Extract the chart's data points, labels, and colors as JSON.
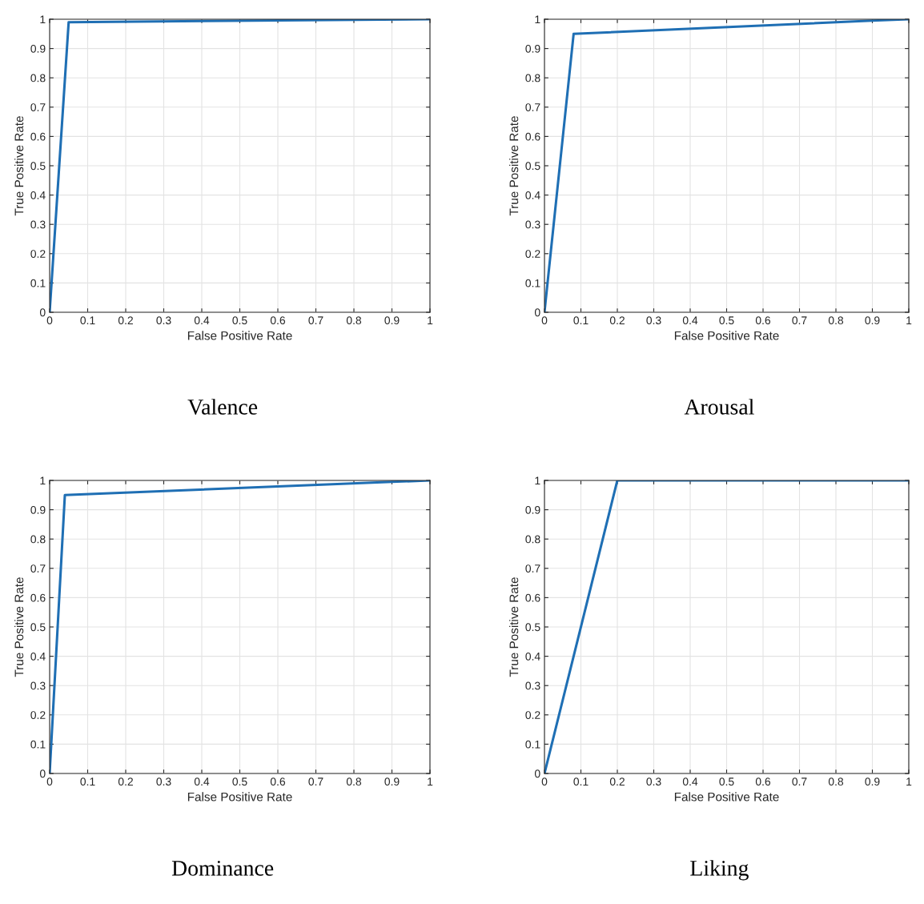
{
  "chart_data": [
    {
      "type": "line",
      "title": "Valence",
      "xlabel": "False Positive Rate",
      "ylabel": "True Positive Rate",
      "xlim": [
        0,
        1
      ],
      "ylim": [
        0,
        1
      ],
      "xticks": [
        0,
        0.1,
        0.2,
        0.3,
        0.4,
        0.5,
        0.6,
        0.7,
        0.8,
        0.9,
        1
      ],
      "yticks": [
        0,
        0.1,
        0.2,
        0.3,
        0.4,
        0.5,
        0.6,
        0.7,
        0.8,
        0.9,
        1
      ],
      "grid": true,
      "marker": "none",
      "line_style": "solid",
      "series": [
        {
          "color": "#1f6fb4",
          "x": [
            0,
            0.05,
            1
          ],
          "values": [
            0,
            0.99,
            1
          ]
        }
      ]
    },
    {
      "type": "line",
      "title": "Arousal",
      "xlabel": "False Positive Rate",
      "ylabel": "True Positive Rate",
      "xlim": [
        0,
        1
      ],
      "ylim": [
        0,
        1
      ],
      "xticks": [
        0,
        0.1,
        0.2,
        0.3,
        0.4,
        0.5,
        0.6,
        0.7,
        0.8,
        0.9,
        1
      ],
      "yticks": [
        0,
        0.1,
        0.2,
        0.3,
        0.4,
        0.5,
        0.6,
        0.7,
        0.8,
        0.9,
        1
      ],
      "grid": true,
      "marker": "none",
      "line_style": "solid",
      "series": [
        {
          "color": "#1f6fb4",
          "x": [
            0,
            0.08,
            0.9,
            1
          ],
          "values": [
            0,
            0.95,
            0.995,
            1
          ]
        }
      ]
    },
    {
      "type": "line",
      "title": "Dominance",
      "xlabel": "False Positive Rate",
      "ylabel": "True Positive Rate",
      "xlim": [
        0,
        1
      ],
      "ylim": [
        0,
        1
      ],
      "xticks": [
        0,
        0.1,
        0.2,
        0.3,
        0.4,
        0.5,
        0.6,
        0.7,
        0.8,
        0.9,
        1
      ],
      "yticks": [
        0,
        0.1,
        0.2,
        0.3,
        0.4,
        0.5,
        0.6,
        0.7,
        0.8,
        0.9,
        1
      ],
      "grid": true,
      "marker": "none",
      "line_style": "solid",
      "series": [
        {
          "color": "#1f6fb4",
          "x": [
            0,
            0.04,
            0.9,
            1
          ],
          "values": [
            0,
            0.95,
            0.995,
            1
          ]
        }
      ]
    },
    {
      "type": "line",
      "title": "Liking",
      "xlabel": "False Positive Rate",
      "ylabel": "True Positive Rate",
      "xlim": [
        0,
        1
      ],
      "ylim": [
        0,
        1
      ],
      "xticks": [
        0,
        0.1,
        0.2,
        0.3,
        0.4,
        0.5,
        0.6,
        0.7,
        0.8,
        0.9,
        1
      ],
      "yticks": [
        0,
        0.1,
        0.2,
        0.3,
        0.4,
        0.5,
        0.6,
        0.7,
        0.8,
        0.9,
        1
      ],
      "grid": true,
      "marker": "none",
      "line_style": "solid",
      "series": [
        {
          "color": "#1f6fb4",
          "x": [
            0,
            0.2,
            1
          ],
          "values": [
            0,
            1,
            1
          ]
        }
      ]
    }
  ]
}
